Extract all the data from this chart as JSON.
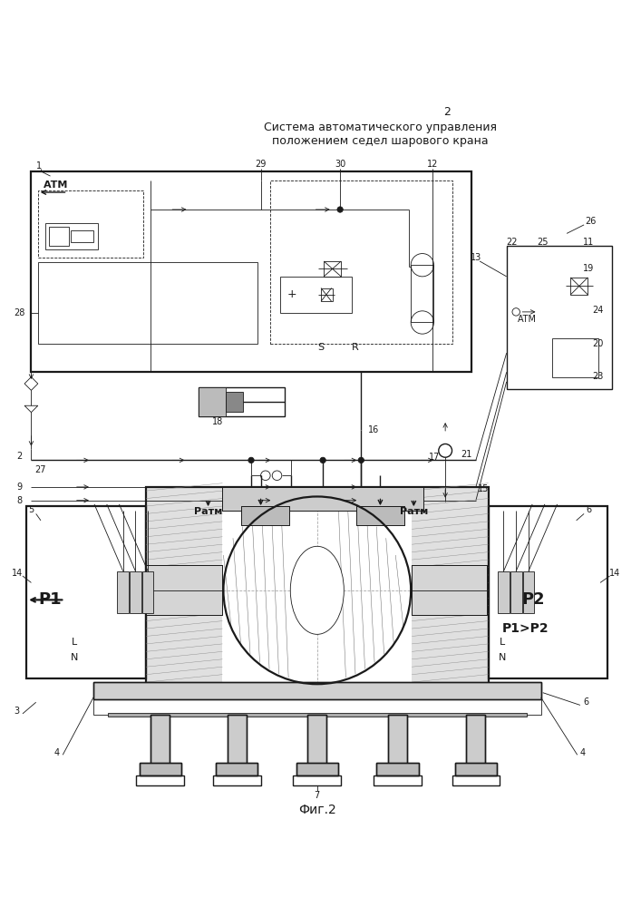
{
  "title_page_num": "2",
  "title_line1": "Система автоматического управления",
  "title_line2": "положением седел шарового крана",
  "fig_label": "Фиг.2",
  "bg_color": "#ffffff",
  "line_color": "#1a1a1a"
}
